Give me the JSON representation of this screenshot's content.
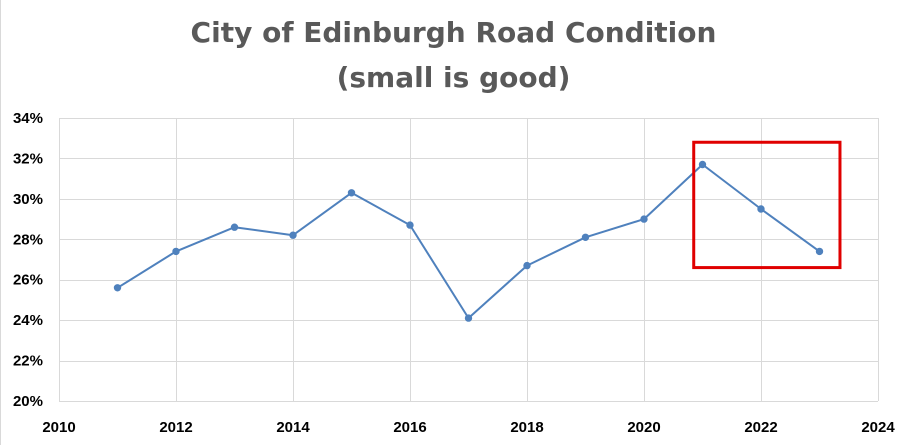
{
  "chart_data": {
    "type": "line",
    "title": "City of Edinburgh Road Condition",
    "subtitle": "(small is good)",
    "xlabel": "",
    "ylabel": "",
    "xlim": [
      2010,
      2024
    ],
    "ylim": [
      20,
      34
    ],
    "x_ticks": [
      "2010",
      "2012",
      "2014",
      "2016",
      "2018",
      "2020",
      "2022",
      "2024"
    ],
    "y_ticks": [
      "20%",
      "22%",
      "24%",
      "26%",
      "28%",
      "30%",
      "32%",
      "34%"
    ],
    "grid": true,
    "series": [
      {
        "name": "Road Condition",
        "color": "#4f81bd",
        "x": [
          2011,
          2012,
          2013,
          2014,
          2015,
          2016,
          2017,
          2018,
          2019,
          2020,
          2021,
          2022,
          2023
        ],
        "values": [
          25.6,
          27.4,
          28.6,
          28.2,
          30.3,
          28.7,
          24.1,
          26.7,
          28.1,
          29.0,
          31.7,
          29.5,
          27.4
        ]
      }
    ],
    "annotations": [
      {
        "type": "highlight-box",
        "color": "#e00000",
        "x_range": [
          2020.85,
          2023.35
        ],
        "y_range": [
          26.6,
          32.8
        ]
      }
    ]
  }
}
